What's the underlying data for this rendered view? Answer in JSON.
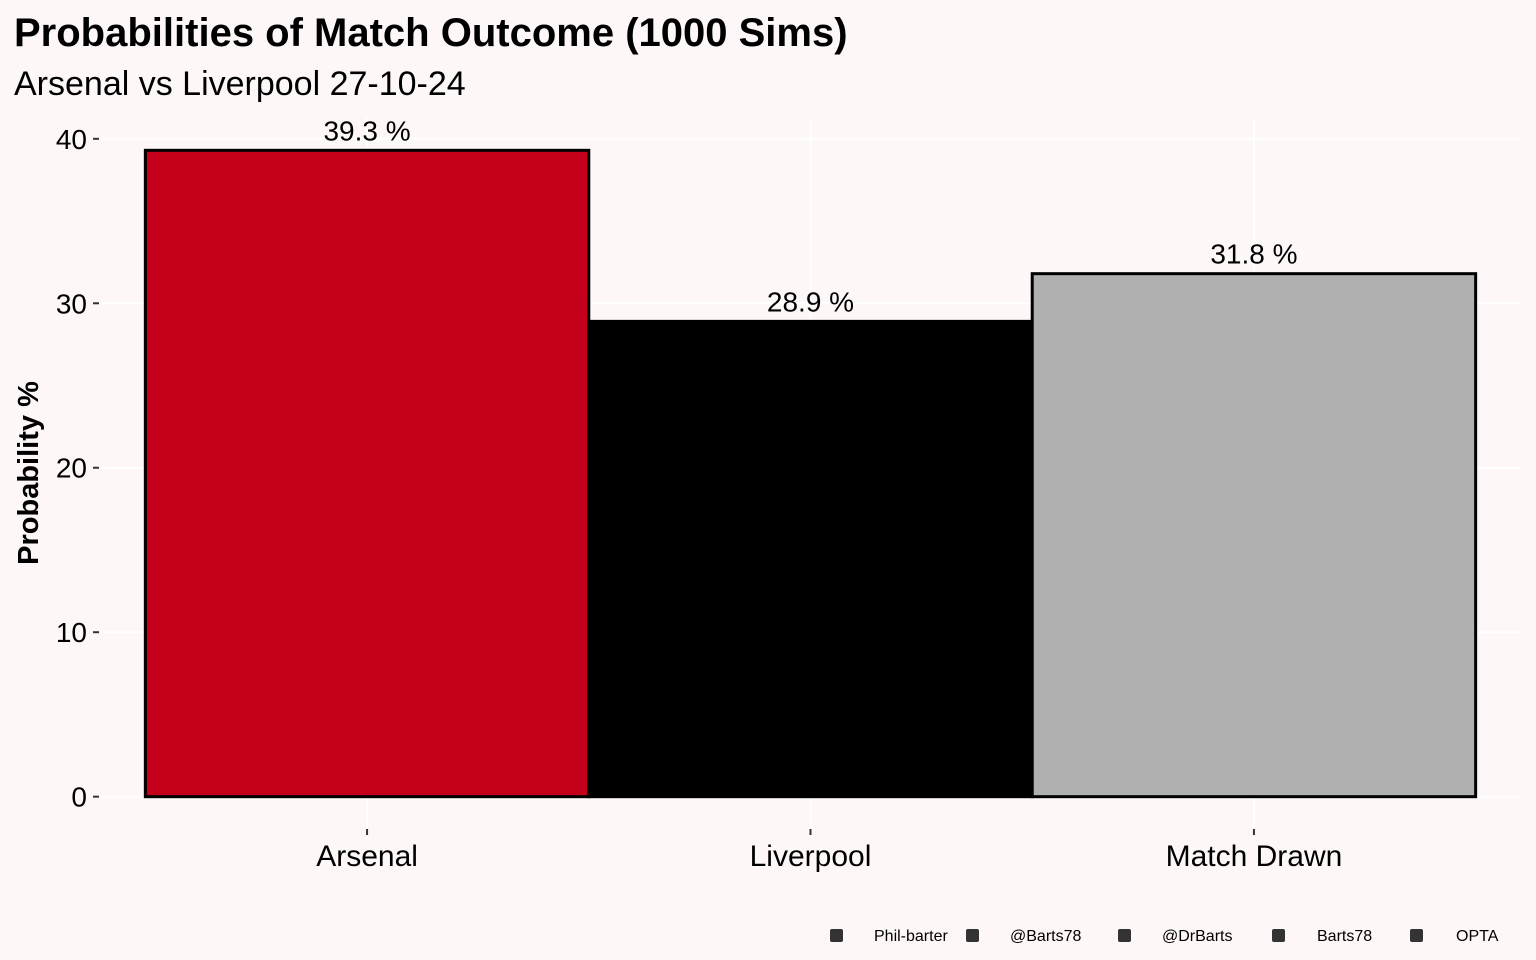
{
  "chart_data": {
    "type": "bar",
    "title": "Probabilities of Match Outcome (1000 Sims)",
    "subtitle": "Arsenal vs Liverpool 27-10-24",
    "y_label": "Probability %",
    "categories": [
      "Arsenal",
      "Liverpool",
      "Match Drawn"
    ],
    "values": [
      39.3,
      28.9,
      31.8
    ],
    "value_labels": [
      "39.3  %",
      "28.9  %",
      "31.8  %"
    ],
    "colors": [
      "#c4001a",
      "#000000",
      "#b0b0b0"
    ],
    "ylim": [
      -1.965,
      41.265
    ],
    "yticks": [
      0,
      10,
      20,
      30,
      40
    ],
    "grid": true,
    "caption": [
      "Phil-barter",
      "@Barts78",
      "@DrBarts",
      "Barts78",
      "OPTA"
    ]
  }
}
